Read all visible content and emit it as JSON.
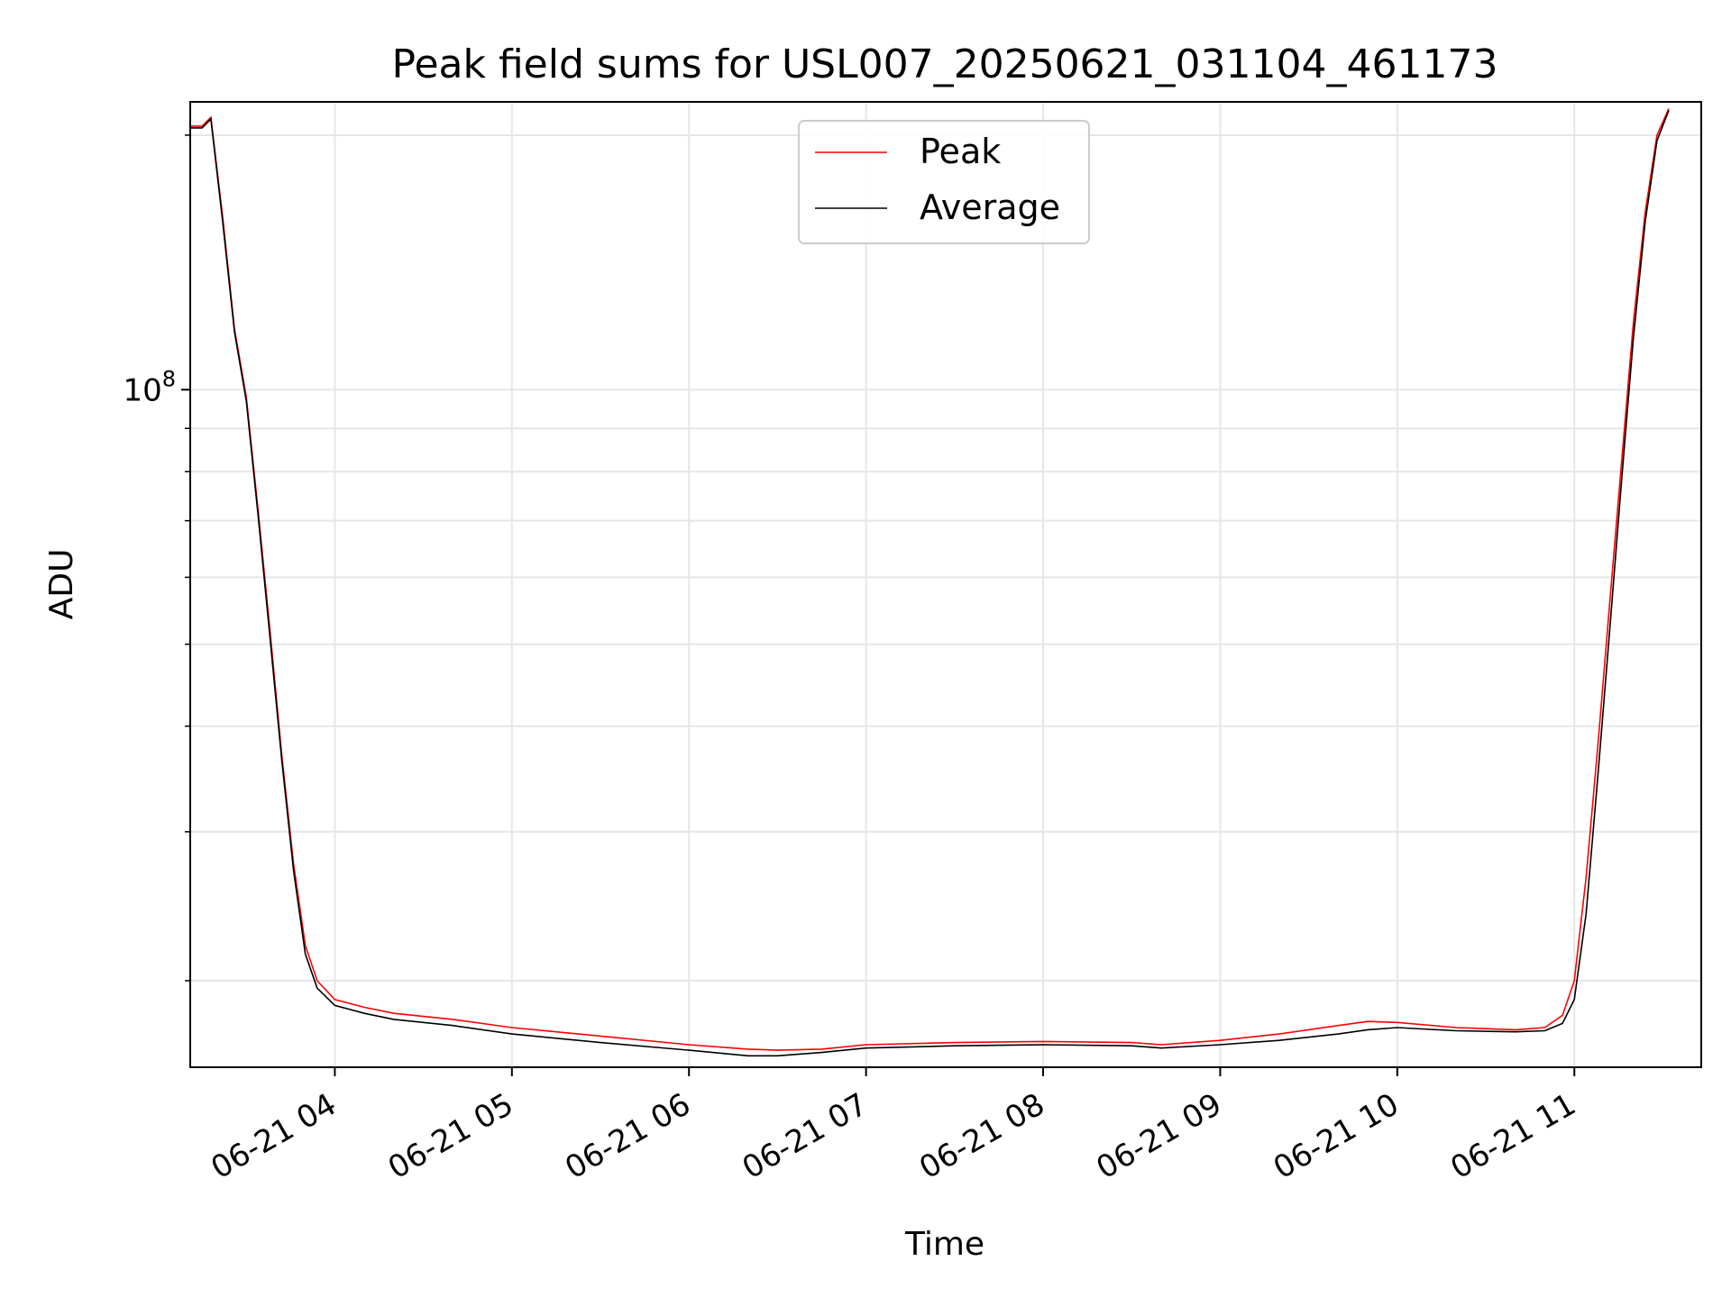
{
  "chart_data": {
    "type": "line",
    "title": "Peak field sums for USL007_20250621_031104_461173",
    "xlabel": "Time",
    "ylabel": "ADU",
    "yscale": "log",
    "xlim": [
      "2025-06-21 03:11",
      "2025-06-21 11:43"
    ],
    "ylim": [
      15800000,
      219000000
    ],
    "x_ticks": [
      "06-21 04",
      "06-21 05",
      "06-21 06",
      "06-21 07",
      "06-21 08",
      "06-21 09",
      "06-21 10",
      "06-21 11"
    ],
    "y_ticks_major": [
      {
        "value": 100000000,
        "label_base": "10",
        "label_exp": "8"
      }
    ],
    "y_ticks_minor": [
      20000000,
      30000000,
      40000000,
      50000000,
      60000000,
      70000000,
      80000000,
      90000000,
      200000000
    ],
    "grid": true,
    "legend": {
      "position": "top-center"
    },
    "series": [
      {
        "name": "Peak",
        "color": "#ff0000",
        "x": [
          "2025-06-21 03:11",
          "2025-06-21 03:15",
          "2025-06-21 03:18",
          "2025-06-21 03:22",
          "2025-06-21 03:26",
          "2025-06-21 03:30",
          "2025-06-21 03:34",
          "2025-06-21 03:38",
          "2025-06-21 03:42",
          "2025-06-21 03:46",
          "2025-06-21 03:50",
          "2025-06-21 03:54",
          "2025-06-21 04:00",
          "2025-06-21 04:10",
          "2025-06-21 04:20",
          "2025-06-21 04:40",
          "2025-06-21 05:00",
          "2025-06-21 05:30",
          "2025-06-21 06:00",
          "2025-06-21 06:20",
          "2025-06-21 06:30",
          "2025-06-21 06:45",
          "2025-06-21 07:00",
          "2025-06-21 07:30",
          "2025-06-21 08:00",
          "2025-06-21 08:30",
          "2025-06-21 08:40",
          "2025-06-21 09:00",
          "2025-06-21 09:20",
          "2025-06-21 09:40",
          "2025-06-21 09:50",
          "2025-06-21 10:00",
          "2025-06-21 10:20",
          "2025-06-21 10:40",
          "2025-06-21 10:50",
          "2025-06-21 10:56",
          "2025-06-21 11:00",
          "2025-06-21 11:04",
          "2025-06-21 11:08",
          "2025-06-21 11:12",
          "2025-06-21 11:16",
          "2025-06-21 11:20",
          "2025-06-21 11:24",
          "2025-06-21 11:28",
          "2025-06-21 11:32"
        ],
        "y": [
          205000000,
          205000000,
          210000000,
          160000000,
          118000000,
          98000000,
          72000000,
          52000000,
          37000000,
          27500000,
          22000000,
          20000000,
          19000000,
          18600000,
          18300000,
          18000000,
          17600000,
          17200000,
          16800000,
          16600000,
          16550000,
          16600000,
          16800000,
          16900000,
          16950000,
          16900000,
          16800000,
          17000000,
          17300000,
          17700000,
          17900000,
          17850000,
          17600000,
          17500000,
          17600000,
          18200000,
          20000000,
          26500000,
          38000000,
          56000000,
          82000000,
          120000000,
          162000000,
          200000000,
          215000000
        ]
      },
      {
        "name": "Average",
        "color": "#000000",
        "x": [
          "2025-06-21 03:11",
          "2025-06-21 03:15",
          "2025-06-21 03:18",
          "2025-06-21 03:22",
          "2025-06-21 03:26",
          "2025-06-21 03:30",
          "2025-06-21 03:34",
          "2025-06-21 03:38",
          "2025-06-21 03:42",
          "2025-06-21 03:46",
          "2025-06-21 03:50",
          "2025-06-21 03:54",
          "2025-06-21 04:00",
          "2025-06-21 04:10",
          "2025-06-21 04:20",
          "2025-06-21 04:40",
          "2025-06-21 05:00",
          "2025-06-21 05:30",
          "2025-06-21 06:00",
          "2025-06-21 06:20",
          "2025-06-21 06:30",
          "2025-06-21 06:45",
          "2025-06-21 07:00",
          "2025-06-21 07:30",
          "2025-06-21 08:00",
          "2025-06-21 08:30",
          "2025-06-21 08:40",
          "2025-06-21 09:00",
          "2025-06-21 09:20",
          "2025-06-21 09:40",
          "2025-06-21 09:50",
          "2025-06-21 10:00",
          "2025-06-21 10:20",
          "2025-06-21 10:40",
          "2025-06-21 10:50",
          "2025-06-21 10:56",
          "2025-06-21 11:00",
          "2025-06-21 11:04",
          "2025-06-21 11:08",
          "2025-06-21 11:12",
          "2025-06-21 11:16",
          "2025-06-21 11:20",
          "2025-06-21 11:24",
          "2025-06-21 11:28",
          "2025-06-21 11:32"
        ],
        "y": [
          204000000,
          204000000,
          209000000,
          158000000,
          117000000,
          97000000,
          71000000,
          51000000,
          36500000,
          27000000,
          21500000,
          19600000,
          18700000,
          18300000,
          18000000,
          17700000,
          17300000,
          16900000,
          16550000,
          16300000,
          16300000,
          16450000,
          16650000,
          16750000,
          16800000,
          16750000,
          16650000,
          16800000,
          17000000,
          17300000,
          17500000,
          17600000,
          17450000,
          17400000,
          17450000,
          17800000,
          19000000,
          24000000,
          35000000,
          52000000,
          78000000,
          115000000,
          158000000,
          197000000,
          214000000
        ]
      }
    ]
  }
}
